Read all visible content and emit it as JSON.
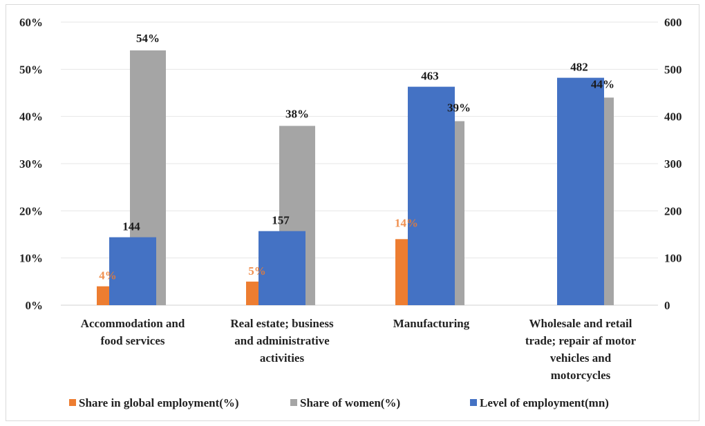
{
  "chart_data": {
    "type": "bar",
    "categories": [
      [
        "Accommodation and",
        "food services"
      ],
      [
        "Real estate; business",
        "and administrative",
        "activities"
      ],
      [
        "Manufacturing"
      ],
      [
        "Wholesale and retail",
        "trade; repair af motor",
        "vehicles and",
        "motorcycles"
      ]
    ],
    "series": [
      {
        "name": "Share in global employment(%)",
        "axis": "left",
        "color": "#ED7D31",
        "values": [
          4,
          5,
          14,
          null
        ],
        "labels": [
          "4%",
          "5%",
          "14%",
          ""
        ],
        "label_color": "#ED7D31"
      },
      {
        "name": "Share of women(%)",
        "axis": "left",
        "color": "#A5A5A5",
        "values": [
          54,
          38,
          39,
          44
        ],
        "labels": [
          "54%",
          "38%",
          "39%",
          "44%"
        ],
        "label_color": "#1a1a1a"
      },
      {
        "name": "Level of employment(mn)",
        "axis": "right",
        "color": "#4472C4",
        "values": [
          144,
          157,
          463,
          482
        ],
        "labels": [
          "144",
          "157",
          "463",
          "482"
        ],
        "label_color": "#1a1a1a"
      }
    ],
    "y_left": {
      "ylim": [
        0,
        60
      ],
      "ticks": [
        "0%",
        "10%",
        "20%",
        "30%",
        "40%",
        "50%",
        "60%"
      ]
    },
    "y_right": {
      "ylim": [
        0,
        600
      ],
      "ticks": [
        "0",
        "100",
        "200",
        "300",
        "400",
        "500",
        "600"
      ]
    },
    "grid": true,
    "legend": "bottom",
    "title": "",
    "xlabel": "",
    "ylabel": ""
  }
}
